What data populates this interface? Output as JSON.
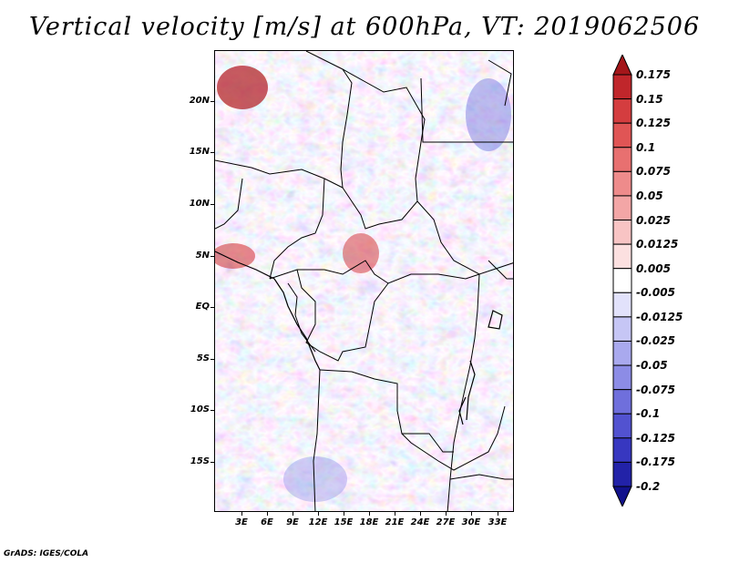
{
  "title": "Vertical velocity [m/s] at 600hPa, VT: 2019062506",
  "footer": "GrADS: IGES/COLA",
  "axes": {
    "y_labels": [
      "20N",
      "15N",
      "10N",
      "5N",
      "EQ",
      "5S",
      "10S",
      "15S"
    ],
    "x_labels": [
      "3E",
      "6E",
      "9E",
      "12E",
      "15E",
      "18E",
      "21E",
      "24E",
      "27E",
      "30E",
      "33E"
    ]
  },
  "colorbar": {
    "labels": [
      "0.175",
      "0.15",
      "0.125",
      "0.1",
      "0.075",
      "0.05",
      "0.025",
      "0.0125",
      "0.005",
      "-0.005",
      "-0.0125",
      "-0.025",
      "-0.05",
      "-0.075",
      "-0.1",
      "-0.125",
      "-0.175",
      "-0.2"
    ],
    "colors": [
      "#a4161a",
      "#c0262b",
      "#d43d3f",
      "#e05555",
      "#e87070",
      "#ee8b8b",
      "#f3a6a6",
      "#f8c4c4",
      "#fce0e0",
      "#ffffff",
      "#e2e2fb",
      "#c6c6f5",
      "#a9a9ee",
      "#8c8ce6",
      "#6f6fdc",
      "#5252d0",
      "#3737c0",
      "#2222a8",
      "#12128c"
    ]
  },
  "map": {
    "variable": "vertical velocity",
    "level": "600hPa",
    "valid_time": "2019062506",
    "units": "m/s"
  }
}
